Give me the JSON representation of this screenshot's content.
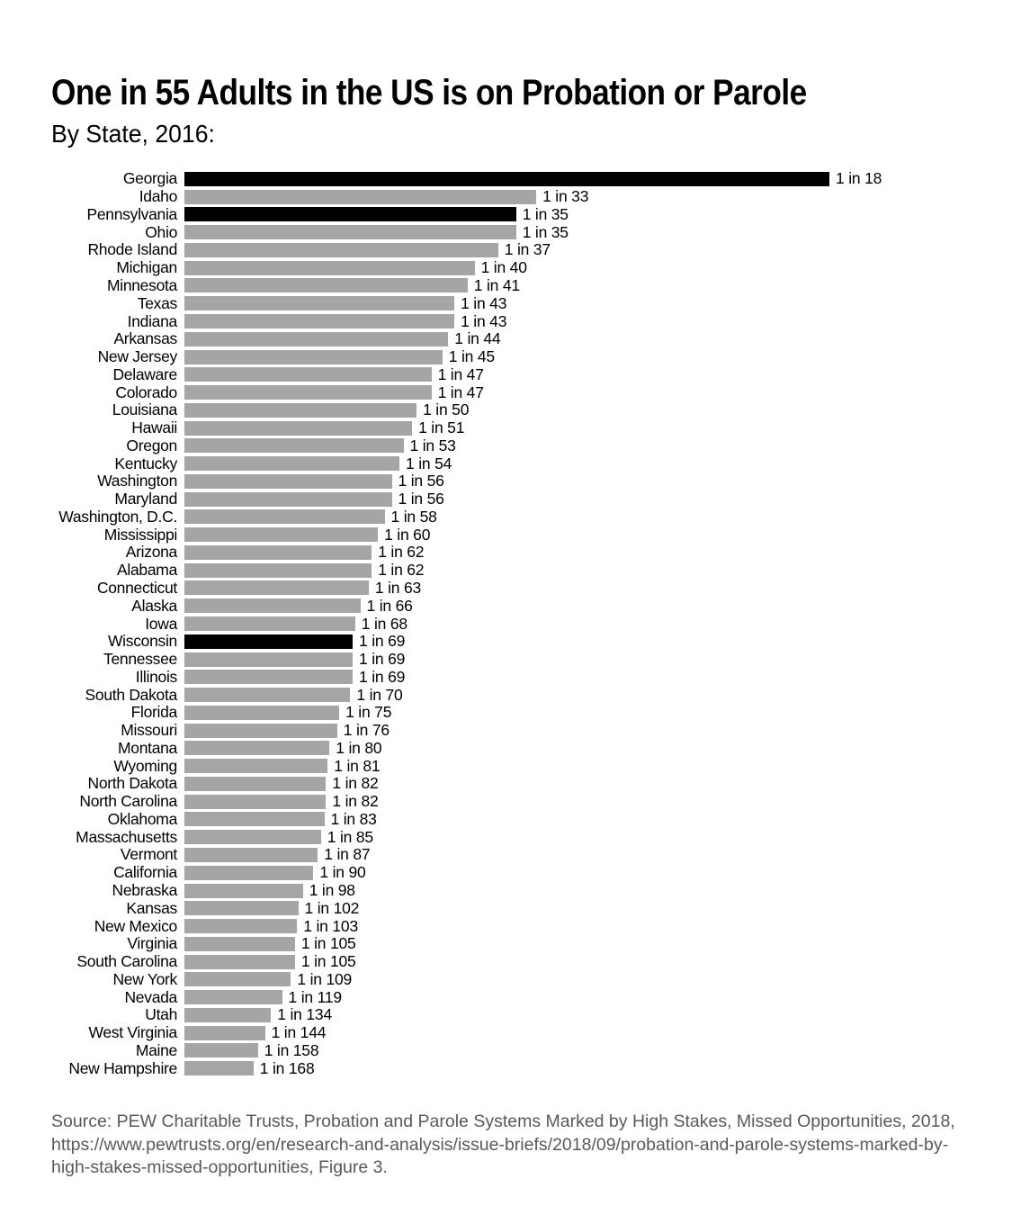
{
  "page": {
    "source": "Source: PEW Charitable Trusts, Probation and Parole Systems Marked by High Stakes, Missed Opportunities, 2018, https://www.pewtrusts.org/en/research-and-analysis/issue-briefs/2018/09/probation-and-parole-systems-marked-by-high-stakes-missed-opportunities, Figure 3."
  },
  "colors": {
    "background": "#ffffff",
    "bar_default": "#a5a5a5",
    "bar_highlight": "#000000",
    "text": "#000000",
    "source_text": "#58595b"
  },
  "chart_data": {
    "type": "bar",
    "orientation": "horizontal",
    "title": "One in 55 Adults in the US is on Probation or Parole",
    "subtitle": "By State, 2016:",
    "value_format": "1 in N (bar length proportional to 1/N)",
    "legend": "none",
    "grid": false,
    "highlight_color_meaning": "black bars highlight Georgia, Pennsylvania and Wisconsin",
    "bars": [
      {
        "state": "Georgia",
        "ratio": 18,
        "label": "1 in 18",
        "highlight": true
      },
      {
        "state": "Idaho",
        "ratio": 33,
        "label": "1 in 33",
        "highlight": false
      },
      {
        "state": "Pennsylvania",
        "ratio": 35,
        "label": "1 in 35",
        "highlight": true
      },
      {
        "state": "Ohio",
        "ratio": 35,
        "label": "1 in 35",
        "highlight": false
      },
      {
        "state": "Rhode Island",
        "ratio": 37,
        "label": "1 in 37",
        "highlight": false
      },
      {
        "state": "Michigan",
        "ratio": 40,
        "label": "1 in 40",
        "highlight": false
      },
      {
        "state": "Minnesota",
        "ratio": 41,
        "label": "1 in 41",
        "highlight": false
      },
      {
        "state": "Texas",
        "ratio": 43,
        "label": "1 in 43",
        "highlight": false
      },
      {
        "state": "Indiana",
        "ratio": 43,
        "label": "1 in 43",
        "highlight": false
      },
      {
        "state": "Arkansas",
        "ratio": 44,
        "label": "1 in 44",
        "highlight": false
      },
      {
        "state": "New Jersey",
        "ratio": 45,
        "label": "1 in 45",
        "highlight": false
      },
      {
        "state": "Delaware",
        "ratio": 47,
        "label": "1 in 47",
        "highlight": false
      },
      {
        "state": "Colorado",
        "ratio": 47,
        "label": "1 in 47",
        "highlight": false
      },
      {
        "state": "Louisiana",
        "ratio": 50,
        "label": "1 in 50",
        "highlight": false
      },
      {
        "state": "Hawaii",
        "ratio": 51,
        "label": "1 in 51",
        "highlight": false
      },
      {
        "state": "Oregon",
        "ratio": 53,
        "label": "1 in 53",
        "highlight": false
      },
      {
        "state": "Kentucky",
        "ratio": 54,
        "label": "1 in 54",
        "highlight": false
      },
      {
        "state": "Washington",
        "ratio": 56,
        "label": "1 in 56",
        "highlight": false
      },
      {
        "state": "Maryland",
        "ratio": 56,
        "label": "1 in 56",
        "highlight": false
      },
      {
        "state": "Washington, D.C.",
        "ratio": 58,
        "label": "1 in 58",
        "highlight": false
      },
      {
        "state": "Mississippi",
        "ratio": 60,
        "label": "1 in 60",
        "highlight": false
      },
      {
        "state": "Arizona",
        "ratio": 62,
        "label": "1 in 62",
        "highlight": false
      },
      {
        "state": "Alabama",
        "ratio": 62,
        "label": "1 in 62",
        "highlight": false
      },
      {
        "state": "Connecticut",
        "ratio": 63,
        "label": "1 in 63",
        "highlight": false
      },
      {
        "state": "Alaska",
        "ratio": 66,
        "label": "1 in 66",
        "highlight": false
      },
      {
        "state": "Iowa",
        "ratio": 68,
        "label": "1 in 68",
        "highlight": false
      },
      {
        "state": "Wisconsin",
        "ratio": 69,
        "label": "1 in 69",
        "highlight": true
      },
      {
        "state": "Tennessee",
        "ratio": 69,
        "label": "1 in 69",
        "highlight": false
      },
      {
        "state": "Illinois",
        "ratio": 69,
        "label": "1 in 69",
        "highlight": false
      },
      {
        "state": "South Dakota",
        "ratio": 70,
        "label": "1 in 70",
        "highlight": false
      },
      {
        "state": "Florida",
        "ratio": 75,
        "label": "1 in 75",
        "highlight": false
      },
      {
        "state": "Missouri",
        "ratio": 76,
        "label": "1 in 76",
        "highlight": false
      },
      {
        "state": "Montana",
        "ratio": 80,
        "label": "1 in 80",
        "highlight": false
      },
      {
        "state": "Wyoming",
        "ratio": 81,
        "label": "1 in 81",
        "highlight": false
      },
      {
        "state": "North Dakota",
        "ratio": 82,
        "label": "1 in 82",
        "highlight": false
      },
      {
        "state": "North Carolina",
        "ratio": 82,
        "label": "1 in 82",
        "highlight": false
      },
      {
        "state": "Oklahoma",
        "ratio": 83,
        "label": "1 in 83",
        "highlight": false
      },
      {
        "state": "Massachusetts",
        "ratio": 85,
        "label": "1 in 85",
        "highlight": false
      },
      {
        "state": "Vermont",
        "ratio": 87,
        "label": "1 in 87",
        "highlight": false
      },
      {
        "state": "California",
        "ratio": 90,
        "label": "1 in 90",
        "highlight": false
      },
      {
        "state": "Nebraska",
        "ratio": 98,
        "label": "1 in 98",
        "highlight": false
      },
      {
        "state": "Kansas",
        "ratio": 102,
        "label": "1 in 102",
        "highlight": false
      },
      {
        "state": "New Mexico",
        "ratio": 103,
        "label": "1 in 103",
        "highlight": false
      },
      {
        "state": "Virginia",
        "ratio": 105,
        "label": "1 in 105",
        "highlight": false
      },
      {
        "state": "South Carolina",
        "ratio": 105,
        "label": "1 in 105",
        "highlight": false
      },
      {
        "state": "New York",
        "ratio": 109,
        "label": "1 in 109",
        "highlight": false
      },
      {
        "state": "Nevada",
        "ratio": 119,
        "label": "1 in 119",
        "highlight": false
      },
      {
        "state": "Utah",
        "ratio": 134,
        "label": "1 in 134",
        "highlight": false
      },
      {
        "state": "West Virginia",
        "ratio": 144,
        "label": "1 in 144",
        "highlight": false
      },
      {
        "state": "Maine",
        "ratio": 158,
        "label": "1 in 158",
        "highlight": false
      },
      {
        "state": "New Hampshire",
        "ratio": 168,
        "label": "1 in 168",
        "highlight": false
      }
    ]
  }
}
